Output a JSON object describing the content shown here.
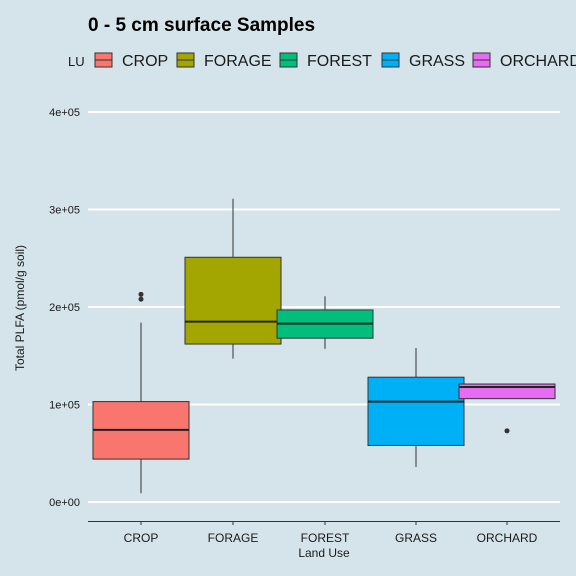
{
  "chart_data": {
    "type": "boxplot",
    "title": "0 - 5 cm surface Samples",
    "xlabel": "Land Use",
    "ylabel": "Total PLFA (pmol/g soil)",
    "ylim": [
      0,
      400000
    ],
    "yticks": [
      {
        "value": 0,
        "label": "0e+00"
      },
      {
        "value": 100000,
        "label": "1e+05"
      },
      {
        "value": 200000,
        "label": "2e+05"
      },
      {
        "value": 300000,
        "label": "3e+05"
      },
      {
        "value": 400000,
        "label": "4e+05"
      }
    ],
    "grid": true,
    "legend": {
      "title": "LU",
      "position": "top"
    },
    "categories": [
      "CROP",
      "FORAGE",
      "FOREST",
      "GRASS",
      "ORCHARD"
    ],
    "series": [
      {
        "name": "CROP",
        "color": "#f8766d",
        "min": 9000,
        "q1": 44000,
        "median": 74000,
        "q3": 103000,
        "max": 184000,
        "outliers": [
          208000,
          213000
        ]
      },
      {
        "name": "FORAGE",
        "color": "#a3a500",
        "min": 147000,
        "q1": 162000,
        "median": 185000,
        "q3": 251000,
        "max": 311000,
        "outliers": []
      },
      {
        "name": "FOREST",
        "color": "#00bf7d",
        "min": 157000,
        "q1": 168000,
        "median": 183000,
        "q3": 197000,
        "max": 211000,
        "outliers": []
      },
      {
        "name": "GRASS",
        "color": "#00b0f6",
        "min": 36000,
        "q1": 58000,
        "median": 103000,
        "q3": 128000,
        "max": 158000,
        "outliers": []
      },
      {
        "name": "ORCHARD",
        "color": "#e76bf3",
        "min": 106000,
        "q1": 106000,
        "median": 118000,
        "q3": 121000,
        "max": 121000,
        "outliers": [
          73000
        ]
      }
    ]
  }
}
